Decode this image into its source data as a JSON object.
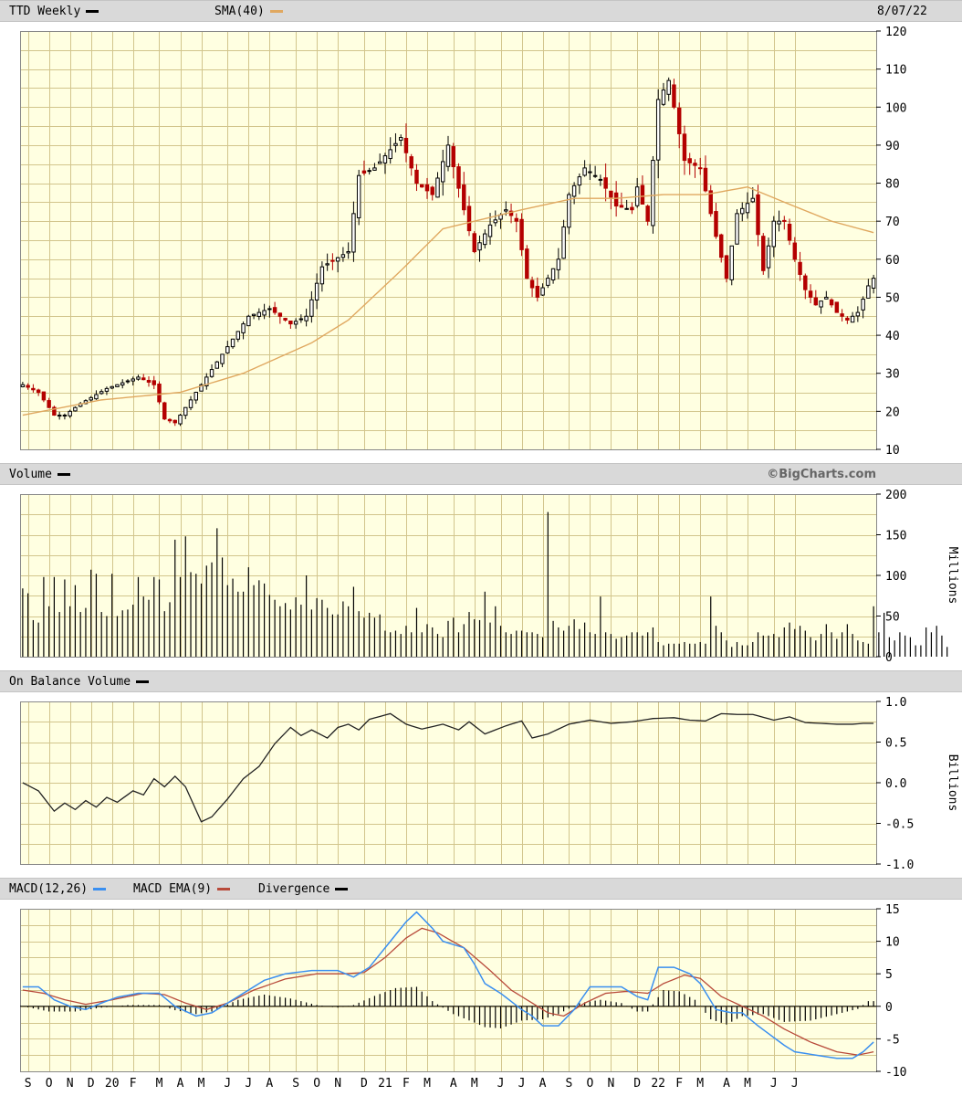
{
  "headers": {
    "price": {
      "symbol_label": "TTD Weekly",
      "sma_label": "SMA(40)",
      "date": "8/07/22"
    },
    "volume": {
      "label": "Volume",
      "watermark": "©BigCharts.com"
    },
    "obv": {
      "label": "On Balance Volume"
    },
    "macd": {
      "macd_label": "MACD(12,26)",
      "ema_label": "MACD EMA(9)",
      "div_label": "Divergence"
    }
  },
  "colors": {
    "background": "#ffffe1",
    "grid": "#d2c58c",
    "up": "#000000",
    "down": "#b40000",
    "sma": "#e0a860",
    "macd": "#3a8ff0",
    "ema": "#b84a3a"
  },
  "chart_data": [
    {
      "type": "candlestick",
      "name": "price",
      "ylim": [
        10,
        120
      ],
      "yticks": [
        10,
        20,
        30,
        40,
        50,
        60,
        70,
        80,
        90,
        100,
        110,
        120
      ],
      "x_labels": [
        "S",
        "O",
        "N",
        "D",
        "20",
        "F",
        "M",
        "A",
        "M",
        "J",
        "J",
        "A",
        "S",
        "O",
        "N",
        "D",
        "21",
        "F",
        "M",
        "A",
        "M",
        "J",
        "J",
        "A",
        "S",
        "O",
        "N",
        "D",
        "22",
        "F",
        "M",
        "A",
        "M",
        "J",
        "J"
      ],
      "x_label_weeks": [
        1,
        5,
        9,
        13,
        17,
        21,
        26,
        30,
        34,
        39,
        43,
        47,
        52,
        56,
        60,
        65,
        69,
        73,
        77,
        82,
        86,
        91,
        95,
        99,
        104,
        108,
        112,
        117,
        121,
        125,
        129,
        134,
        138,
        143,
        147
      ],
      "close_anchors": [
        [
          0,
          27
        ],
        [
          3,
          25
        ],
        [
          6,
          19
        ],
        [
          8,
          19
        ],
        [
          11,
          22
        ],
        [
          16,
          26
        ],
        [
          22,
          29
        ],
        [
          25,
          27
        ],
        [
          27,
          18
        ],
        [
          29,
          17
        ],
        [
          31,
          21
        ],
        [
          36,
          31
        ],
        [
          41,
          41
        ],
        [
          43,
          45
        ],
        [
          47,
          47
        ],
        [
          51,
          43
        ],
        [
          54,
          45
        ],
        [
          57,
          58
        ],
        [
          62,
          62
        ],
        [
          64,
          82
        ],
        [
          67,
          84
        ],
        [
          72,
          92
        ],
        [
          75,
          80
        ],
        [
          78,
          77
        ],
        [
          81,
          90
        ],
        [
          84,
          73
        ],
        [
          86,
          62
        ],
        [
          89,
          69
        ],
        [
          92,
          73
        ],
        [
          94,
          70
        ],
        [
          96,
          55
        ],
        [
          98,
          50
        ],
        [
          102,
          60
        ],
        [
          104,
          77
        ],
        [
          107,
          84
        ],
        [
          110,
          81
        ],
        [
          113,
          74
        ],
        [
          116,
          73
        ],
        [
          117,
          79
        ],
        [
          119,
          70
        ],
        [
          121,
          102
        ],
        [
          123,
          107
        ],
        [
          126,
          86
        ],
        [
          129,
          84
        ],
        [
          132,
          66
        ],
        [
          134,
          55
        ],
        [
          136,
          72
        ],
        [
          139,
          76
        ],
        [
          141,
          57
        ],
        [
          143,
          70
        ],
        [
          145,
          70
        ],
        [
          147,
          60
        ],
        [
          149,
          52
        ],
        [
          151,
          48
        ],
        [
          153,
          50
        ],
        [
          155,
          46
        ],
        [
          157,
          44
        ],
        [
          159,
          46
        ],
        [
          161,
          53
        ],
        [
          162,
          55
        ]
      ],
      "sma_anchors": [
        [
          0,
          19
        ],
        [
          15,
          23
        ],
        [
          30,
          25
        ],
        [
          42,
          30
        ],
        [
          55,
          38
        ],
        [
          62,
          44
        ],
        [
          72,
          57
        ],
        [
          80,
          68
        ],
        [
          95,
          73
        ],
        [
          105,
          76
        ],
        [
          113,
          76
        ],
        [
          122,
          77
        ],
        [
          130,
          77
        ],
        [
          138,
          79
        ],
        [
          145,
          75
        ],
        [
          154,
          70
        ],
        [
          162,
          67
        ]
      ]
    },
    {
      "type": "bar",
      "name": "volume",
      "ylim": [
        0,
        200
      ],
      "yticks": [
        0,
        50,
        100,
        150,
        200
      ],
      "ylabel": "Millions",
      "values": [
        84,
        78,
        45,
        42,
        98,
        62,
        98,
        55,
        95,
        62,
        88,
        55,
        60,
        107,
        102,
        55,
        50,
        102,
        50,
        57,
        58,
        64,
        98,
        74,
        70,
        98,
        95,
        56,
        67,
        144,
        98,
        148,
        104,
        102,
        90,
        112,
        116,
        158,
        122,
        88,
        96,
        80,
        80,
        110,
        88,
        94,
        90,
        76,
        70,
        62,
        66,
        58,
        73,
        64,
        100,
        58,
        72,
        70,
        60,
        52,
        52,
        68,
        62,
        86,
        56,
        48,
        54,
        48,
        52,
        32,
        30,
        32,
        28,
        38,
        30,
        60,
        30,
        40,
        36,
        28,
        24,
        44,
        48,
        30,
        40,
        55,
        46,
        45,
        80,
        42,
        62,
        38,
        30,
        28,
        32,
        32,
        30,
        30,
        28,
        24,
        178,
        44,
        36,
        32,
        38,
        46,
        34,
        42,
        30,
        28,
        74,
        30,
        28,
        22,
        24,
        26,
        30,
        30,
        26,
        30,
        36,
        18,
        14,
        16,
        16,
        16,
        18,
        16,
        16,
        18,
        16,
        74,
        38,
        30,
        20,
        12,
        18,
        14,
        14,
        18,
        30,
        26,
        26,
        28,
        24,
        36,
        42,
        34,
        38,
        32,
        24,
        20,
        28,
        40,
        30,
        22,
        30,
        40,
        28,
        20,
        18,
        16,
        62,
        30,
        54,
        24,
        20,
        30,
        26,
        24,
        14,
        14,
        36,
        30,
        38,
        26,
        12
      ]
    },
    {
      "type": "line",
      "name": "on balance volume",
      "ylim": [
        -1.0,
        1.0
      ],
      "yticks": [
        -1.0,
        -0.5,
        0.0,
        0.5,
        1.0
      ],
      "ylabel": "Billions",
      "anchors": [
        [
          0,
          0.0
        ],
        [
          3,
          -0.1
        ],
        [
          6,
          -0.35
        ],
        [
          8,
          -0.25
        ],
        [
          10,
          -0.33
        ],
        [
          12,
          -0.22
        ],
        [
          14,
          -0.3
        ],
        [
          16,
          -0.18
        ],
        [
          18,
          -0.24
        ],
        [
          21,
          -0.1
        ],
        [
          23,
          -0.15
        ],
        [
          25,
          0.05
        ],
        [
          27,
          -0.05
        ],
        [
          29,
          0.08
        ],
        [
          31,
          -0.05
        ],
        [
          34,
          -0.48
        ],
        [
          36,
          -0.42
        ],
        [
          39,
          -0.2
        ],
        [
          42,
          0.05
        ],
        [
          45,
          0.2
        ],
        [
          48,
          0.48
        ],
        [
          51,
          0.68
        ],
        [
          53,
          0.58
        ],
        [
          55,
          0.65
        ],
        [
          58,
          0.55
        ],
        [
          60,
          0.68
        ],
        [
          62,
          0.72
        ],
        [
          64,
          0.65
        ],
        [
          66,
          0.78
        ],
        [
          70,
          0.85
        ],
        [
          73,
          0.72
        ],
        [
          76,
          0.66
        ],
        [
          80,
          0.72
        ],
        [
          83,
          0.65
        ],
        [
          85,
          0.75
        ],
        [
          88,
          0.6
        ],
        [
          92,
          0.7
        ],
        [
          95,
          0.76
        ],
        [
          97,
          0.55
        ],
        [
          100,
          0.6
        ],
        [
          104,
          0.72
        ],
        [
          108,
          0.77
        ],
        [
          112,
          0.73
        ],
        [
          116,
          0.75
        ],
        [
          120,
          0.79
        ],
        [
          124,
          0.8
        ],
        [
          127,
          0.77
        ],
        [
          130,
          0.76
        ],
        [
          133,
          0.85
        ],
        [
          136,
          0.84
        ],
        [
          139,
          0.84
        ],
        [
          143,
          0.77
        ],
        [
          146,
          0.81
        ],
        [
          149,
          0.74
        ],
        [
          152,
          0.73
        ],
        [
          155,
          0.72
        ],
        [
          158,
          0.72
        ],
        [
          160,
          0.73
        ],
        [
          162,
          0.73
        ]
      ]
    },
    {
      "type": "line",
      "name": "MACD",
      "ylim": [
        -10,
        15
      ],
      "yticks": [
        -10,
        -5,
        0,
        5,
        10,
        15
      ],
      "macd_anchors": [
        [
          0,
          3
        ],
        [
          3,
          3
        ],
        [
          6,
          1
        ],
        [
          9,
          0
        ],
        [
          12,
          -0.5
        ],
        [
          15,
          0.5
        ],
        [
          18,
          1.4
        ],
        [
          22,
          2
        ],
        [
          26,
          2
        ],
        [
          29,
          0
        ],
        [
          33,
          -1.5
        ],
        [
          36,
          -1
        ],
        [
          40,
          1
        ],
        [
          46,
          4
        ],
        [
          50,
          5
        ],
        [
          55,
          5.5
        ],
        [
          60,
          5.5
        ],
        [
          63,
          4.5
        ],
        [
          66,
          6
        ],
        [
          70,
          10
        ],
        [
          73,
          13
        ],
        [
          75,
          14.5
        ],
        [
          78,
          12
        ],
        [
          80,
          10
        ],
        [
          84,
          9
        ],
        [
          86,
          6.5
        ],
        [
          88,
          3.5
        ],
        [
          91,
          2
        ],
        [
          95,
          -0.5
        ],
        [
          97,
          -1.5
        ],
        [
          99,
          -3
        ],
        [
          102,
          -3
        ],
        [
          105,
          -0.5
        ],
        [
          108,
          3
        ],
        [
          111,
          3
        ],
        [
          114,
          3
        ],
        [
          117,
          1.5
        ],
        [
          119,
          1
        ],
        [
          121,
          6
        ],
        [
          124,
          6
        ],
        [
          127,
          5
        ],
        [
          129,
          3.5
        ],
        [
          132,
          -0.5
        ],
        [
          135,
          -1
        ],
        [
          137,
          -1
        ],
        [
          140,
          -3
        ],
        [
          145,
          -6
        ],
        [
          147,
          -7
        ],
        [
          151,
          -7.5
        ],
        [
          155,
          -8
        ],
        [
          158,
          -8
        ],
        [
          160,
          -7
        ],
        [
          162,
          -5.5
        ]
      ],
      "ema_anchors": [
        [
          0,
          2.5
        ],
        [
          4,
          2
        ],
        [
          8,
          1
        ],
        [
          12,
          0.3
        ],
        [
          17,
          1
        ],
        [
          23,
          2
        ],
        [
          27,
          1.8
        ],
        [
          31,
          0.5
        ],
        [
          35,
          -0.5
        ],
        [
          39,
          0.5
        ],
        [
          44,
          2.5
        ],
        [
          50,
          4.2
        ],
        [
          56,
          5
        ],
        [
          61,
          5
        ],
        [
          65,
          5.2
        ],
        [
          69,
          7.5
        ],
        [
          73,
          10.5
        ],
        [
          76,
          12
        ],
        [
          79,
          11.3
        ],
        [
          84,
          9
        ],
        [
          89,
          5.5
        ],
        [
          93,
          2.5
        ],
        [
          97,
          0.5
        ],
        [
          100,
          -1
        ],
        [
          103,
          -1.5
        ],
        [
          107,
          0.5
        ],
        [
          111,
          2
        ],
        [
          115,
          2.3
        ],
        [
          119,
          2
        ],
        [
          122,
          3.5
        ],
        [
          126,
          4.8
        ],
        [
          129,
          4.3
        ],
        [
          133,
          1.5
        ],
        [
          137,
          0
        ],
        [
          141,
          -1.5
        ],
        [
          145,
          -3.5
        ],
        [
          150,
          -5.5
        ],
        [
          155,
          -7
        ],
        [
          159,
          -7.5
        ],
        [
          162,
          -7
        ]
      ],
      "divergence_anchors": [
        [
          0,
          0
        ],
        [
          5,
          -0.8
        ],
        [
          10,
          -0.8
        ],
        [
          15,
          -0.2
        ],
        [
          20,
          0.2
        ],
        [
          26,
          0.2
        ],
        [
          29,
          -0.6
        ],
        [
          33,
          -1.2
        ],
        [
          36,
          -0.8
        ],
        [
          41,
          1
        ],
        [
          46,
          1.8
        ],
        [
          51,
          1.2
        ],
        [
          56,
          0.2
        ],
        [
          60,
          -0.2
        ],
        [
          63,
          0.2
        ],
        [
          67,
          1.6
        ],
        [
          71,
          2.8
        ],
        [
          75,
          3
        ],
        [
          78,
          0.8
        ],
        [
          82,
          -1.2
        ],
        [
          86,
          -2.5
        ],
        [
          88,
          -3.2
        ],
        [
          91,
          -3.4
        ],
        [
          95,
          -2.2
        ],
        [
          99,
          -2
        ],
        [
          102,
          -1.2
        ],
        [
          106,
          0.5
        ],
        [
          110,
          1
        ],
        [
          114,
          0.5
        ],
        [
          117,
          -0.8
        ],
        [
          119,
          -0.8
        ],
        [
          122,
          2.5
        ],
        [
          125,
          2.3
        ],
        [
          128,
          1
        ],
        [
          131,
          -2
        ],
        [
          134,
          -2.8
        ],
        [
          137,
          -1.5
        ],
        [
          141,
          -1.2
        ],
        [
          145,
          -2.4
        ],
        [
          150,
          -2.2
        ],
        [
          155,
          -1.2
        ],
        [
          159,
          -0.4
        ],
        [
          161,
          0.8
        ]
      ]
    }
  ]
}
